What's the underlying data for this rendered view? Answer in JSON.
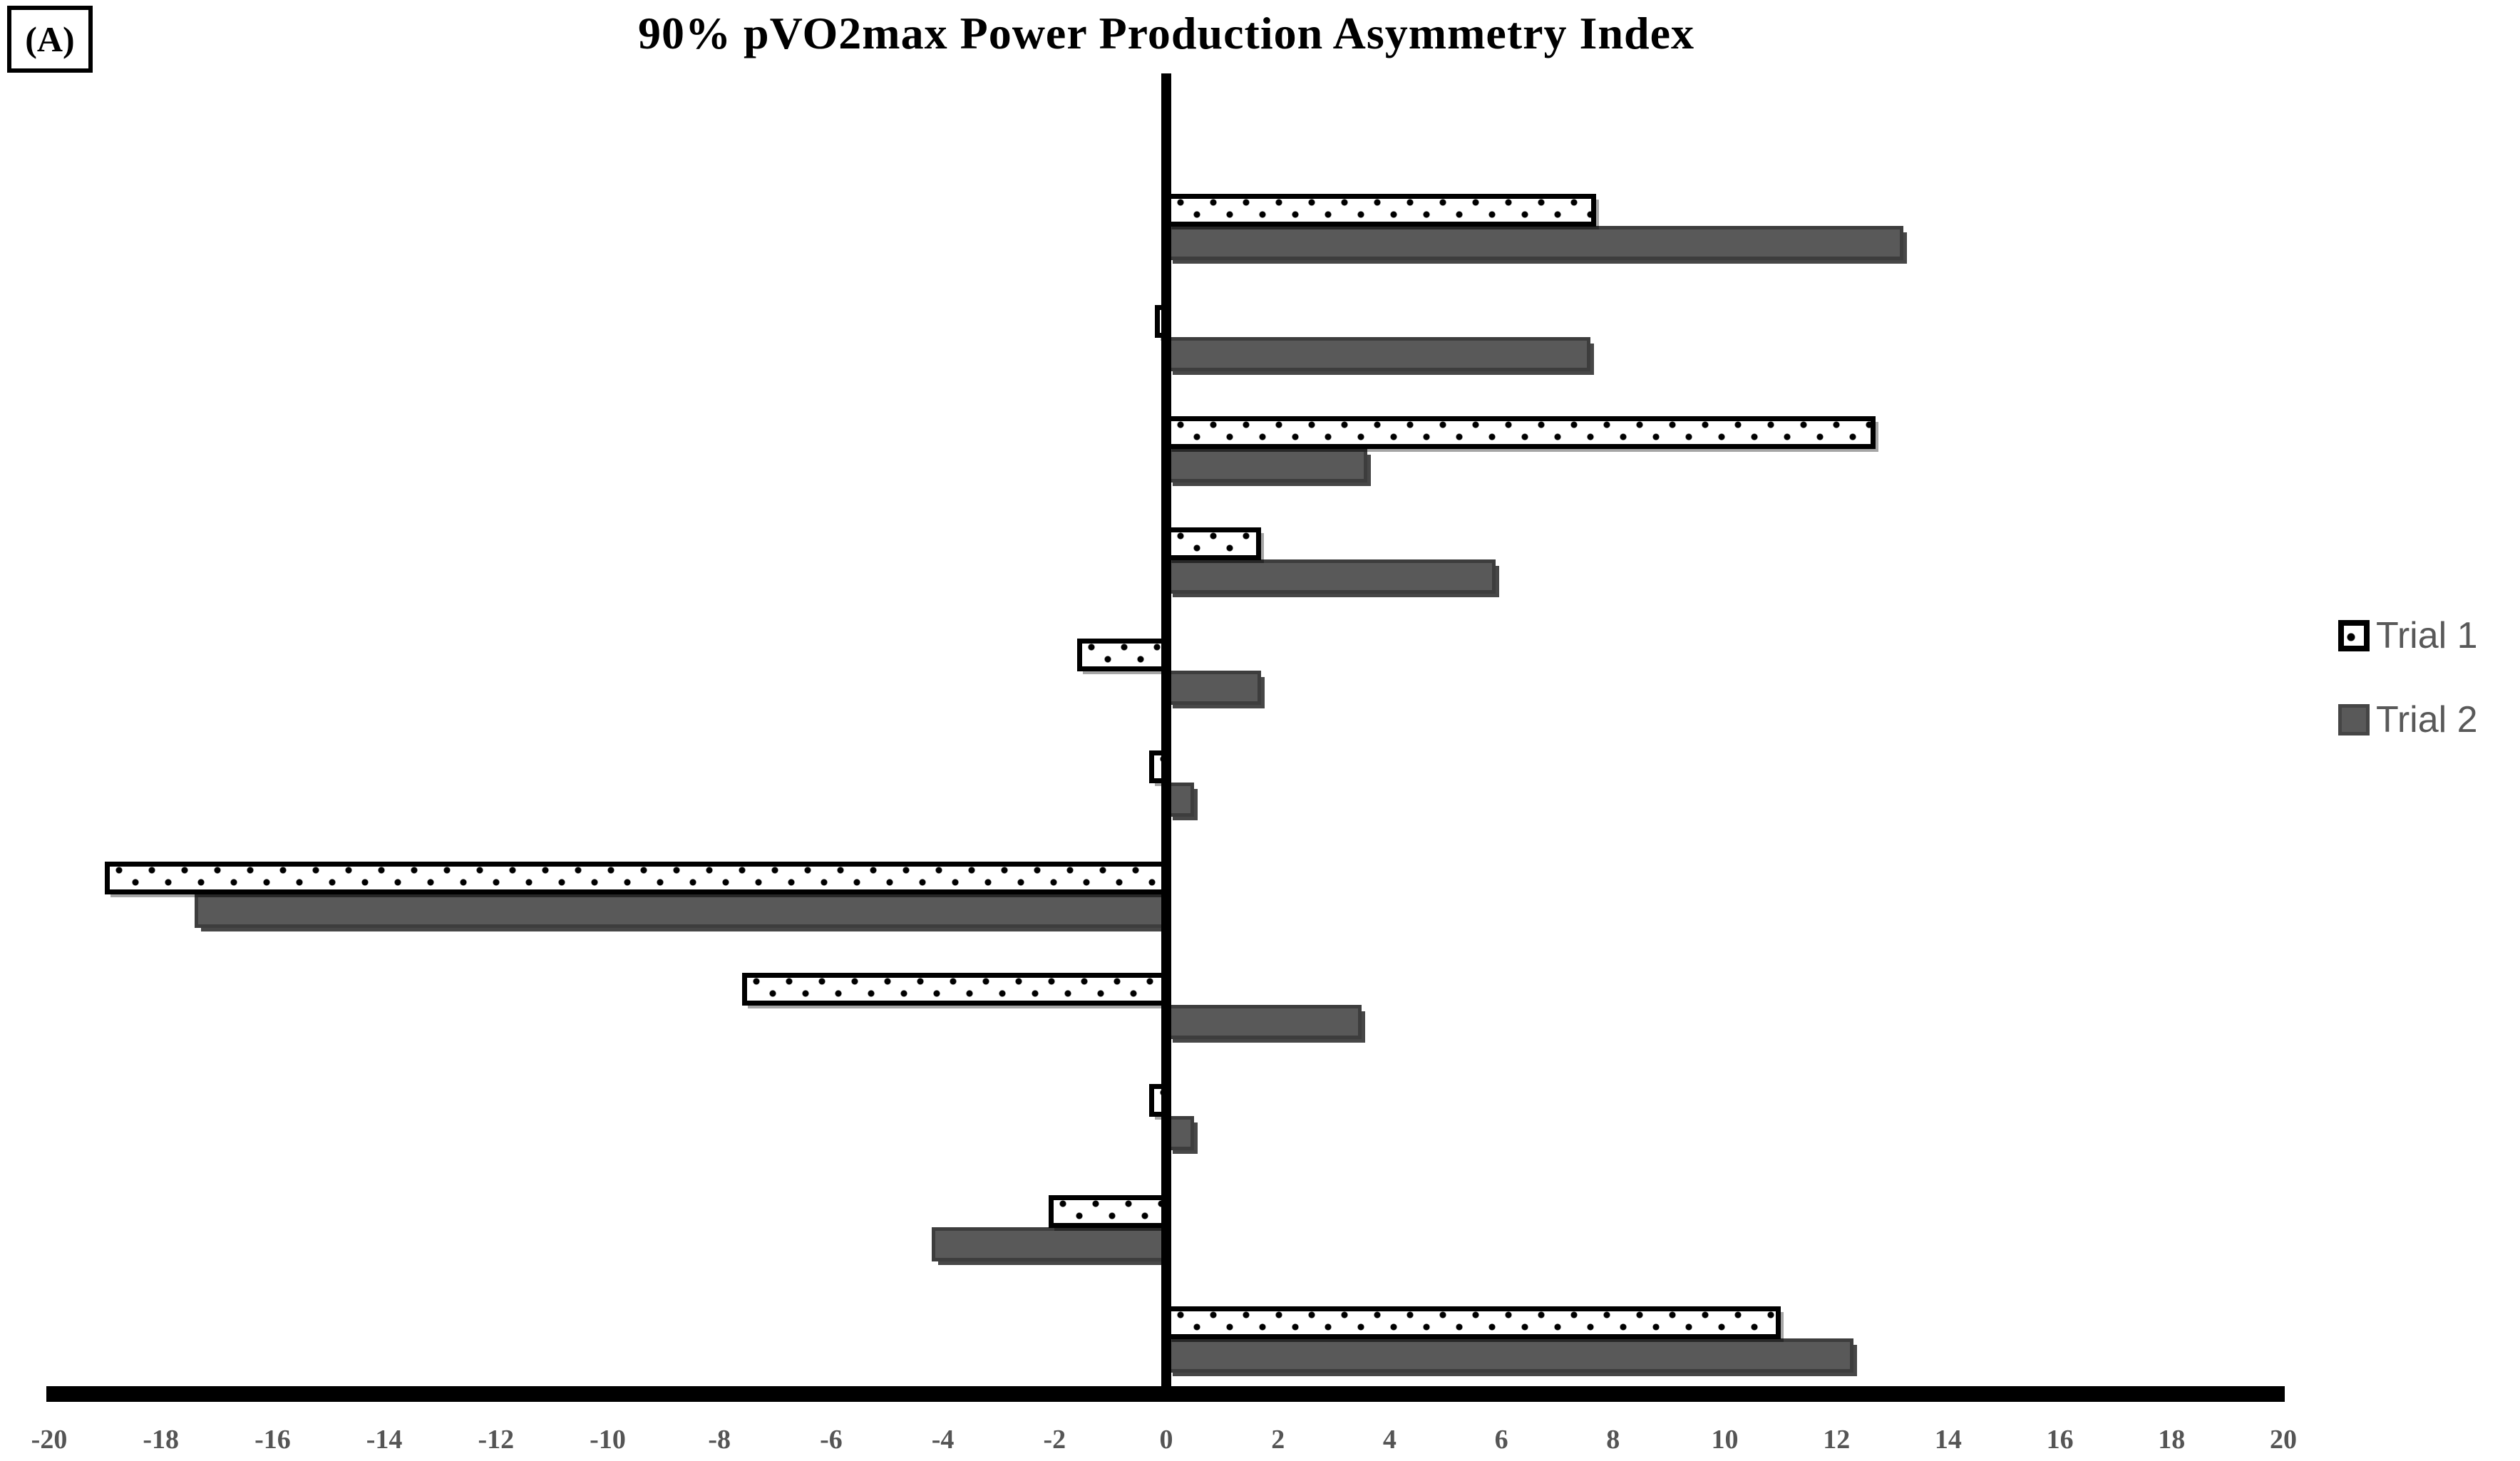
{
  "panel_label": "(A)",
  "title": "90% pVO2max Power Production Asymmetry Index",
  "legend": {
    "items": [
      {
        "label": "Trial 1",
        "swatch": "dotted-white"
      },
      {
        "label": "Trial 2",
        "swatch": "solid-gray"
      }
    ]
  },
  "colors": {
    "title_text": "#000000",
    "axis_line": "#000000",
    "tick_text": "#555555",
    "legend_text": "#595959",
    "trial1_fill": "#ffffff",
    "trial1_border": "#000000",
    "trial2_fill": "#595959",
    "trial2_border": "#3d3d3d"
  },
  "chart_data": {
    "type": "bar",
    "orientation": "horizontal",
    "title": "90% pVO2max Power Production Asymmetry Index",
    "xlabel": "",
    "ylabel": "",
    "categories": [
      "",
      "",
      "",
      "",
      "",
      "",
      "",
      "",
      "",
      "",
      ""
    ],
    "series": [
      {
        "name": "Trial 1",
        "pattern": "dotted-white-black-border",
        "values": [
          7.7,
          -0.2,
          12.7,
          1.7,
          -1.6,
          -0.3,
          -19.0,
          -7.6,
          -0.3,
          -2.1,
          11.0
        ]
      },
      {
        "name": "Trial 2",
        "pattern": "solid-dark-gray",
        "values": [
          13.2,
          7.6,
          3.6,
          5.9,
          1.7,
          0.5,
          -17.4,
          3.5,
          0.5,
          -4.2,
          12.3
        ]
      }
    ],
    "x_axis": {
      "min": -20,
      "max": 20,
      "step": 2,
      "tick_labels": [
        "-20",
        "-18",
        "-16",
        "-14",
        "-12",
        "-10",
        "-8",
        "-6",
        "-4",
        "-2",
        "0",
        "2",
        "4",
        "6",
        "8",
        "10",
        "12",
        "14",
        "16",
        "18",
        "20"
      ]
    },
    "grid": false,
    "legend_position": "right"
  }
}
